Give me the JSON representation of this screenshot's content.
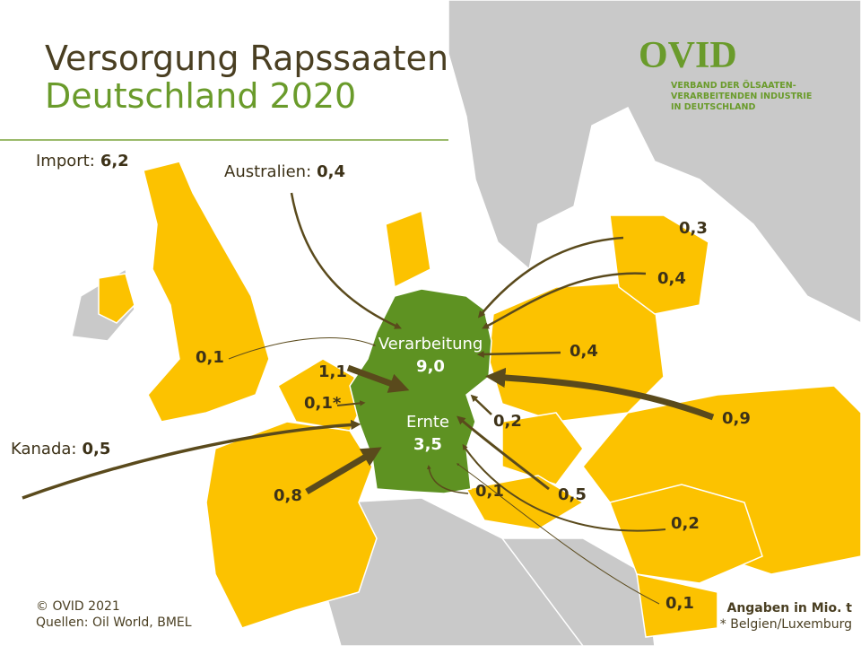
{
  "header": {
    "title_line1": "Versorgung Rapssaaten",
    "title_line2": "Deutschland 2020"
  },
  "logo": {
    "name": "OVID",
    "subtitle_lines": [
      "VERBAND DER ÖLSAATEN-",
      "VERARBEITENDEN INDUSTRIE",
      "IN DEUTSCHLAND"
    ]
  },
  "import": {
    "label": "Import:",
    "value": "6,2"
  },
  "germany": {
    "processing_label": "Verarbeitung",
    "processing_value": "9,0",
    "harvest_label": "Ernte",
    "harvest_value": "3,5"
  },
  "flows": [
    {
      "label": "Australien:",
      "value": "0,4"
    },
    {
      "label": "Kanada:",
      "value": "0,5"
    },
    {
      "value": "0,3"
    },
    {
      "value": "0,4"
    },
    {
      "value": "0,4"
    },
    {
      "value": "0,9"
    },
    {
      "value": "0,2"
    },
    {
      "value": "0,5"
    },
    {
      "value": "0,2"
    },
    {
      "value": "0,1"
    },
    {
      "value": "0,1"
    },
    {
      "value": "0,8"
    },
    {
      "value": "0,1*"
    },
    {
      "value": "1,1"
    },
    {
      "value": "0,1"
    }
  ],
  "footer": {
    "copyright": "© OVID 2021",
    "sources": "Quellen: Oil World, BMEL",
    "units": "Angaben in Mio. t",
    "note": "* Belgien/Luxemburg"
  }
}
